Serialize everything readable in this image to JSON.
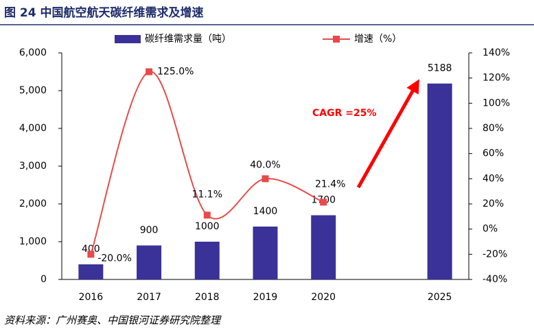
{
  "chart_data": {
    "type": "bar",
    "title": "图 24 中国航空航天碳纤维需求及增速",
    "source": "资料来源：广州赛奥、中国银河证券研究院整理",
    "categories": [
      "2016",
      "2017",
      "2018",
      "2019",
      "2020",
      null,
      "2025"
    ],
    "series": [
      {
        "name": "碳纤维需求量（吨）",
        "color": "#3a3199",
        "values": [
          400,
          900,
          1000,
          1400,
          1700,
          null,
          5188
        ]
      },
      {
        "name": "增速（%）",
        "color": "#e84a4a",
        "type": "line",
        "axis": "y2",
        "values": [
          -20,
          125,
          11.1,
          40,
          21.4,
          null,
          null
        ],
        "value_labels": [
          "-20.0%",
          "125.0%",
          "11.1%",
          "40.0%",
          "21.4%",
          null,
          null
        ]
      }
    ],
    "ylim": [
      0,
      6000
    ],
    "yticks": [
      0,
      {
        "value": 1000,
        "label": "1,000"
      },
      {
        "value": 2000,
        "label": "2,000"
      },
      {
        "value": 3000,
        "label": "3,000"
      },
      {
        "value": 4000,
        "label": "4,000"
      },
      {
        "value": 5000,
        "label": "5,000"
      },
      {
        "value": 6000,
        "label": "6,000"
      }
    ],
    "y2lim": [
      -40,
      140
    ],
    "y2ticks": [
      {
        "value": -40,
        "label": "-40%"
      },
      {
        "value": -20,
        "label": "-20%"
      },
      {
        "value": 0,
        "label": "0%"
      },
      {
        "value": 20,
        "label": "20%"
      },
      {
        "value": 40,
        "label": "40%"
      },
      {
        "value": 60,
        "label": "60%"
      },
      {
        "value": 80,
        "label": "80%"
      },
      {
        "value": 100,
        "label": "100%"
      },
      {
        "value": 120,
        "label": "120%"
      },
      {
        "value": 140,
        "label": "140%"
      }
    ],
    "annotation": "CAGR =25%",
    "legend": "top"
  }
}
